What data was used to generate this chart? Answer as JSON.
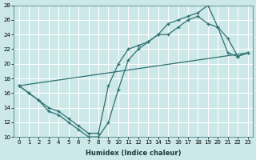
{
  "xlabel": "Humidex (Indice chaleur)",
  "xlim": [
    -0.5,
    23.5
  ],
  "ylim": [
    10,
    28
  ],
  "xticks": [
    0,
    1,
    2,
    3,
    4,
    5,
    6,
    7,
    8,
    9,
    10,
    11,
    12,
    13,
    14,
    15,
    16,
    17,
    18,
    19,
    20,
    21,
    22,
    23
  ],
  "yticks": [
    10,
    12,
    14,
    16,
    18,
    20,
    22,
    24,
    26,
    28
  ],
  "bg_color": "#cce8e8",
  "grid_color": "#ffffff",
  "line_color": "#2e7070",
  "line1_x": [
    0,
    1,
    2,
    3,
    4,
    5,
    6,
    7,
    8,
    9,
    10,
    11,
    12,
    13,
    14,
    15,
    16,
    17,
    18,
    19,
    20,
    21,
    22,
    23
  ],
  "line1_y": [
    17,
    16,
    15,
    13.5,
    13,
    12,
    11,
    10,
    10,
    12,
    16.5,
    20.5,
    22,
    23,
    24,
    25.5,
    26,
    26.5,
    27,
    28,
    25,
    23.5,
    21,
    21.5
  ],
  "line2_x": [
    0,
    1,
    2,
    3,
    4,
    5,
    6,
    7,
    8,
    9,
    10,
    11,
    12,
    13,
    14,
    15,
    16,
    17,
    18,
    19,
    20,
    21,
    22,
    23
  ],
  "line2_y": [
    17,
    16,
    15,
    14,
    13.5,
    12.5,
    11.5,
    10.5,
    10.5,
    17,
    20,
    22,
    22.5,
    23,
    24,
    24,
    25,
    26,
    26.5,
    25.5,
    25,
    21.5,
    21,
    21.5
  ],
  "line3_x": [
    0,
    23
  ],
  "line3_y": [
    17,
    21.5
  ]
}
